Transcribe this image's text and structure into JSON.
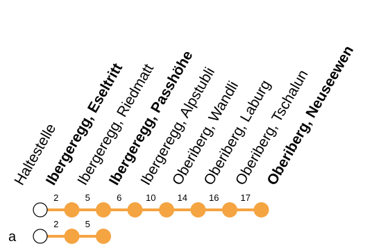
{
  "colors": {
    "line": "#f5a442",
    "stop_fill": "#f5a442",
    "origin_fill": "#ffffff",
    "origin_stroke": "#000000",
    "text": "#000000"
  },
  "header": {
    "label": "Haltestelle"
  },
  "stops": [
    {
      "name": "Ibergeregg, Eseltritt",
      "bold": true
    },
    {
      "name": "Ibergeregg, Riedmatt",
      "bold": false
    },
    {
      "name": "Ibergeregg, Passhöhe",
      "bold": true
    },
    {
      "name": "Ibergeregg, Alpstubli",
      "bold": false
    },
    {
      "name": "Oberiberg, Wandli",
      "bold": false
    },
    {
      "name": "Oberiberg, Laburg",
      "bold": false
    },
    {
      "name": "Oberiberg, Tschalun",
      "bold": false
    },
    {
      "name": "Oberiberg, Neuseewen",
      "bold": true
    }
  ],
  "routes": [
    {
      "label": "",
      "times": [
        "2",
        "5",
        "6",
        "10",
        "14",
        "16",
        "17"
      ]
    },
    {
      "label": "a",
      "times": [
        "2",
        "5"
      ]
    }
  ]
}
